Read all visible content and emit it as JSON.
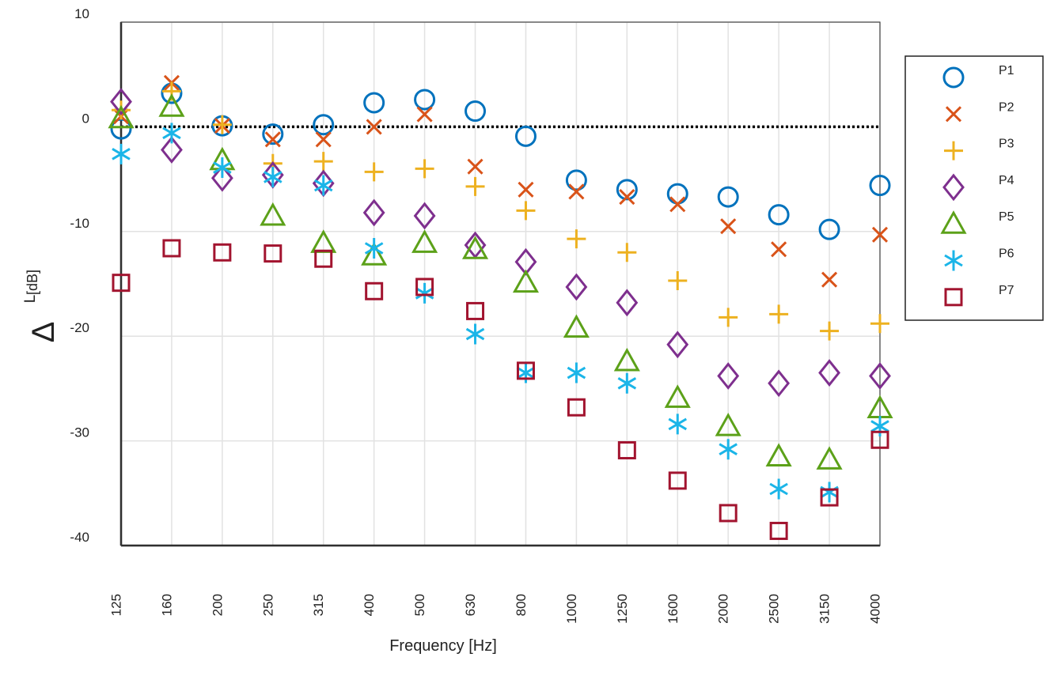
{
  "chart_data": {
    "type": "scatter",
    "title": "",
    "xlabel": "Frequency [Hz]",
    "ylabel_symbol": "Δ",
    "ylabel_super": "L",
    "ylabel_unit": "[dB]",
    "categories": [
      "125",
      "160",
      "200",
      "250",
      "315",
      "400",
      "500",
      "630",
      "800",
      "1000",
      "1250",
      "1600",
      "2000",
      "2500",
      "3150",
      "4000"
    ],
    "ylim": [
      -40,
      10
    ],
    "yticks": [
      10,
      0,
      -10,
      -20,
      -30,
      -40
    ],
    "grid": true,
    "reference_line": 0,
    "legend_position": "right",
    "series": [
      {
        "name": "P1",
        "marker": "circle",
        "color": "#0072BD",
        "values": [
          -0.2,
          3.2,
          0.1,
          -0.7,
          0.2,
          2.3,
          2.6,
          1.5,
          -0.9,
          -5.1,
          -6.0,
          -6.4,
          -6.7,
          -8.4,
          -9.8,
          -5.6
        ]
      },
      {
        "name": "P2",
        "marker": "x",
        "color": "#D95319",
        "values": [
          1.0,
          4.2,
          0.1,
          -1.2,
          -1.2,
          0.0,
          1.2,
          -3.8,
          -6.0,
          -6.2,
          -6.7,
          -7.4,
          -9.5,
          -11.7,
          -14.6,
          -10.3
        ]
      },
      {
        "name": "P3",
        "marker": "plus",
        "color": "#EDB120",
        "values": [
          1.6,
          3.4,
          0.2,
          -3.5,
          -3.3,
          -4.3,
          -4.0,
          -5.7,
          -8.0,
          -10.7,
          -12.0,
          -14.7,
          -18.2,
          -17.9,
          -19.5,
          -18.8
        ]
      },
      {
        "name": "P4",
        "marker": "diamond",
        "color": "#7E2F8E",
        "values": [
          2.4,
          -2.2,
          -4.9,
          -4.6,
          -5.4,
          -8.2,
          -8.5,
          -11.3,
          -12.9,
          -15.3,
          -16.8,
          -20.8,
          -23.8,
          -24.5,
          -23.5,
          -23.8
        ]
      },
      {
        "name": "P5",
        "marker": "triangle",
        "color": "#5CA119",
        "values": [
          0.8,
          1.9,
          -3.2,
          -8.5,
          -11.1,
          -12.3,
          -11.1,
          -11.7,
          -14.9,
          -19.2,
          -22.4,
          -25.9,
          -28.6,
          -31.5,
          -31.8,
          -26.9
        ]
      },
      {
        "name": "P6",
        "marker": "asterisk",
        "color": "#1BB5E8",
        "values": [
          -2.6,
          -0.6,
          -3.9,
          -4.8,
          -5.6,
          -11.6,
          -15.9,
          -19.8,
          -23.5,
          -23.5,
          -24.5,
          -28.4,
          -30.8,
          -34.6,
          -34.9,
          -28.6
        ]
      },
      {
        "name": "P7",
        "marker": "square",
        "color": "#A2142F",
        "values": [
          -14.9,
          -11.6,
          -12.0,
          -12.1,
          -12.6,
          -15.7,
          -15.3,
          -17.6,
          -23.3,
          -26.8,
          -30.9,
          -33.8,
          -36.9,
          -38.6,
          -35.4,
          -29.9
        ]
      }
    ]
  }
}
